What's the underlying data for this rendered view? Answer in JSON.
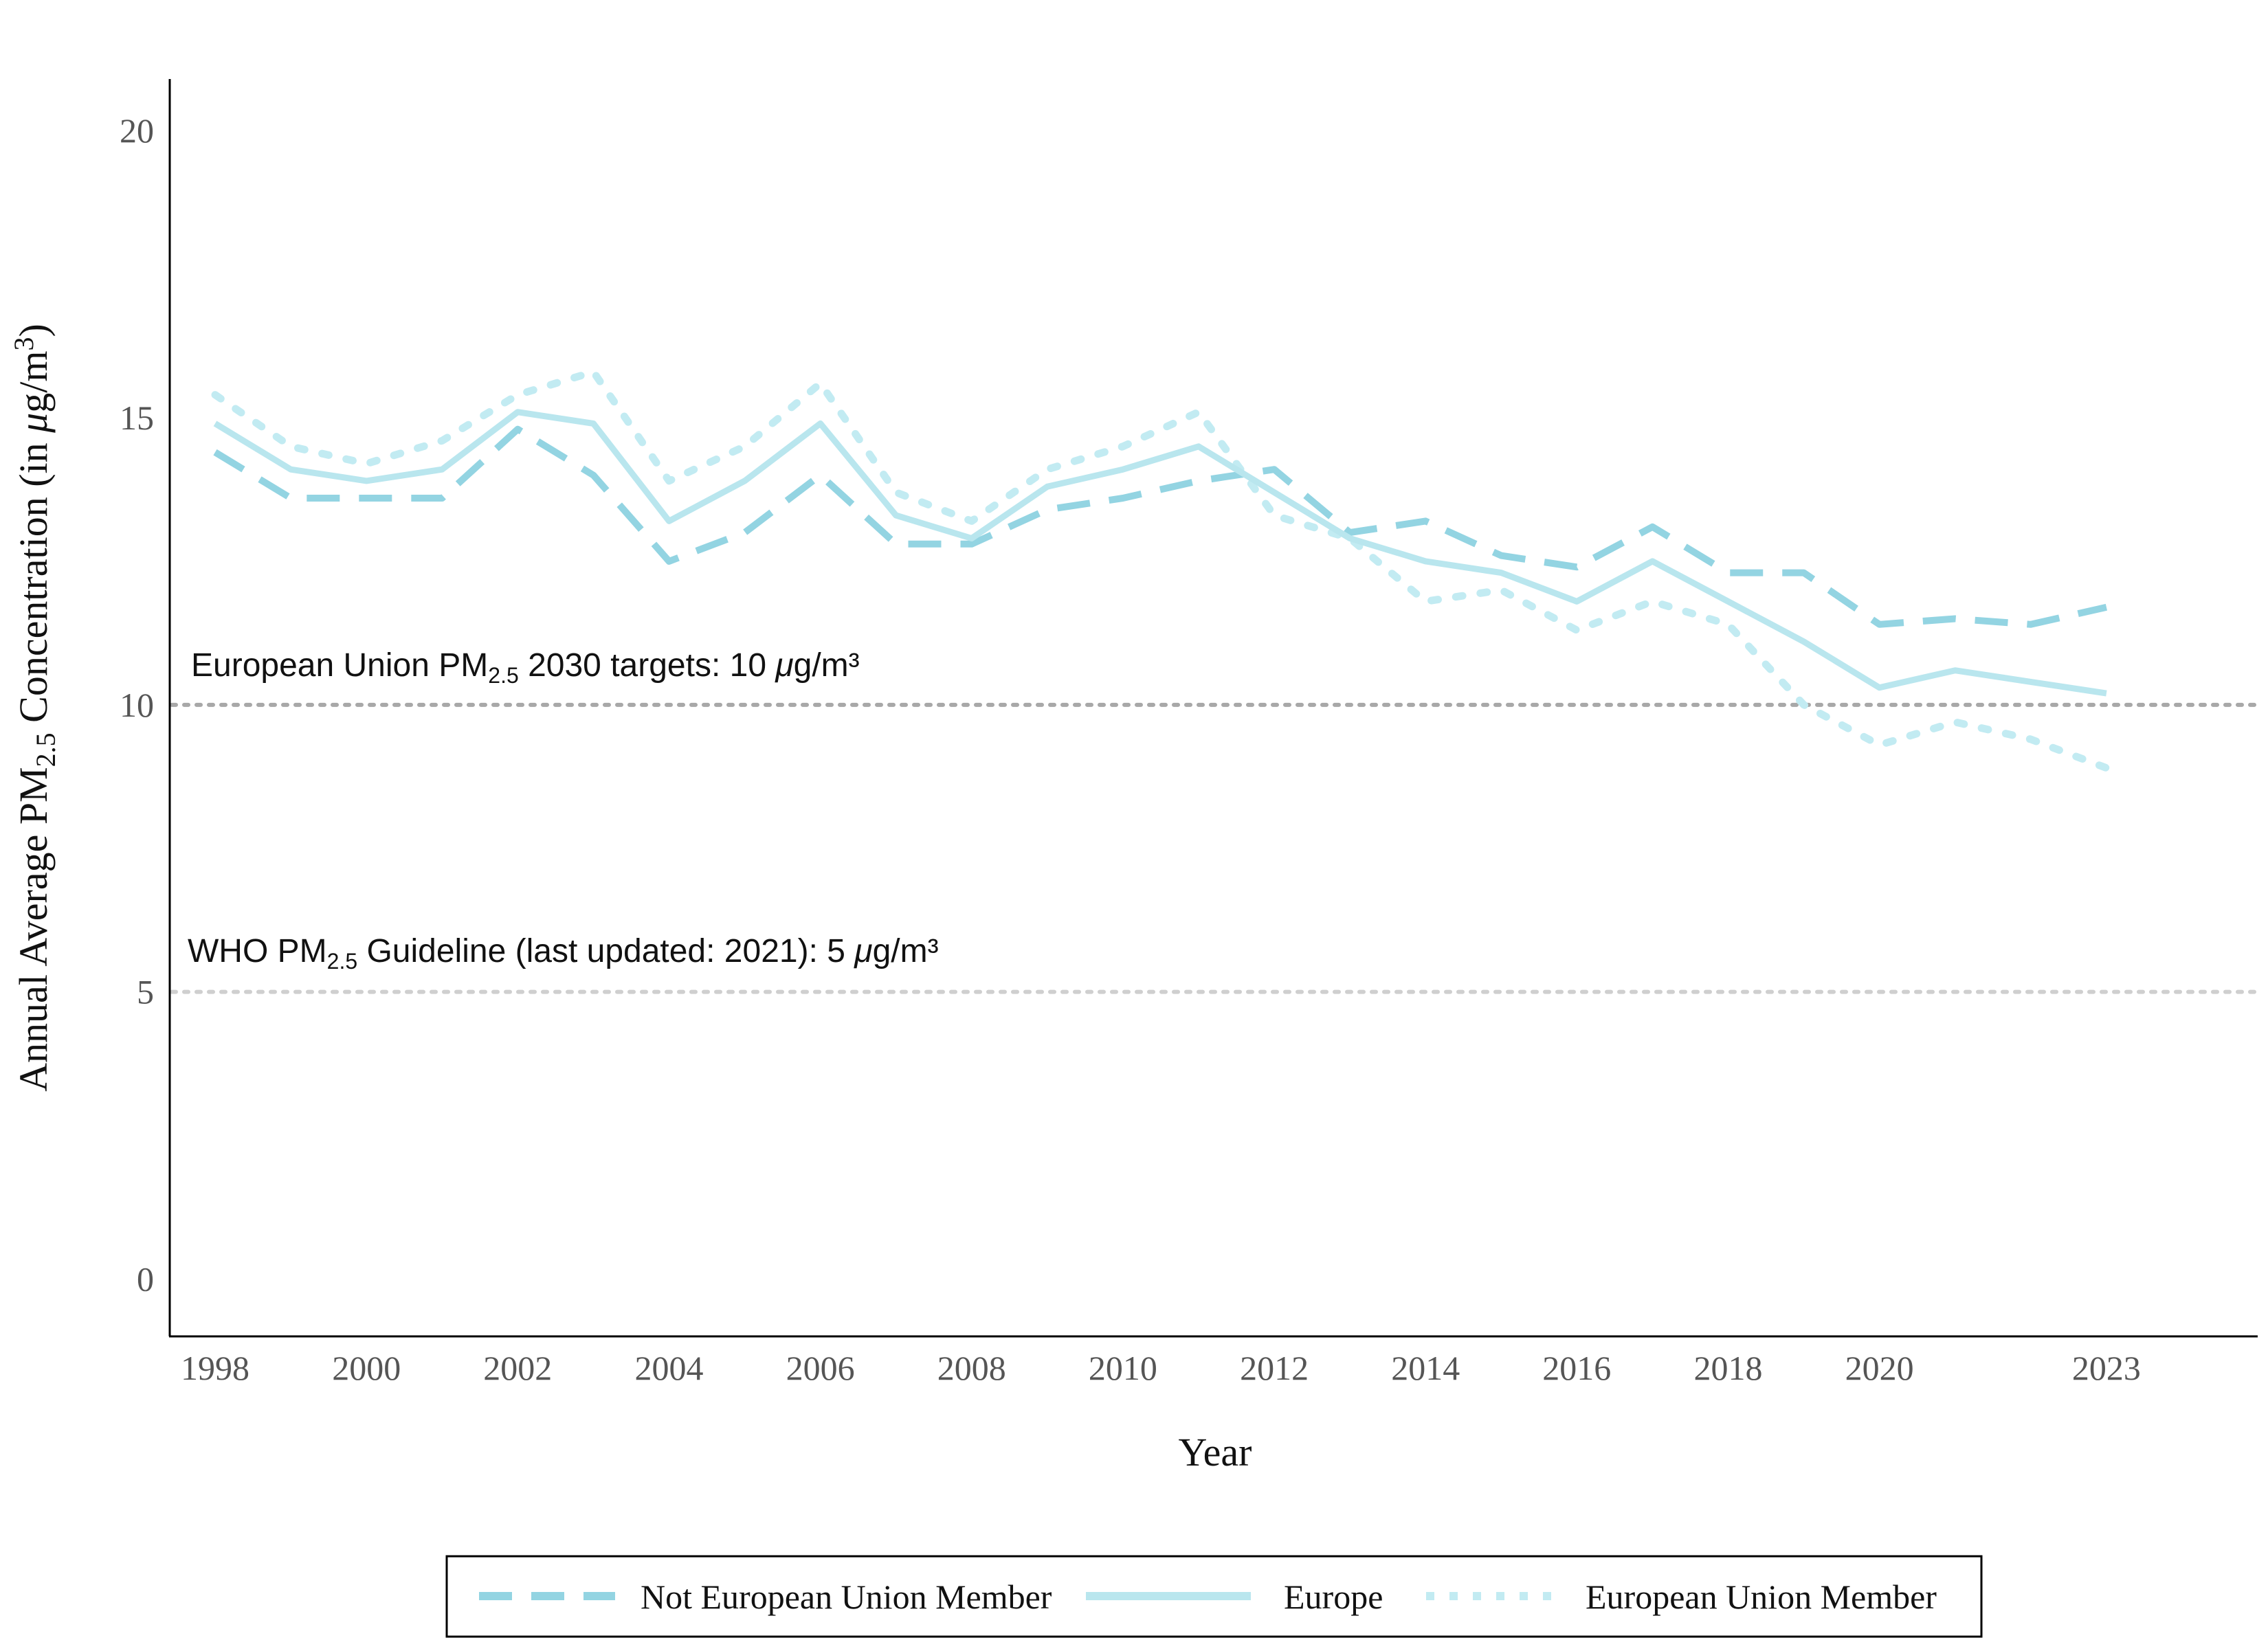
{
  "chart_data": {
    "type": "line",
    "xlabel": "Year",
    "ylabel": {
      "prefix": "Annual Average ",
      "pm": "PM",
      "pm_sub": "2.5",
      "middle": " Concentration (in ",
      "mu": "μ",
      "unit": "g/m",
      "sup": "3",
      "suffix": ")"
    },
    "xlim": [
      1997.4,
      2025.0
    ],
    "ylim": [
      -1.0,
      20.9
    ],
    "x_ticks": [
      1998,
      2000,
      2002,
      2004,
      2006,
      2008,
      2010,
      2012,
      2014,
      2016,
      2018,
      2020,
      2023
    ],
    "y_ticks": [
      0,
      5,
      10,
      15,
      20
    ],
    "grid": false,
    "x": [
      1998,
      1999,
      2000,
      2001,
      2002,
      2003,
      2004,
      2005,
      2006,
      2007,
      2008,
      2009,
      2010,
      2011,
      2012,
      2013,
      2014,
      2015,
      2016,
      2017,
      2018,
      2019,
      2020,
      2021,
      2022,
      2023
    ],
    "series": [
      {
        "name": "Not European Union Member",
        "style": "dashed",
        "color": "#93d4e2",
        "values": [
          14.4,
          13.6,
          13.6,
          13.6,
          14.8,
          14.0,
          12.5,
          13.0,
          14.0,
          12.8,
          12.8,
          13.4,
          13.6,
          13.9,
          14.1,
          13.0,
          13.2,
          12.6,
          12.4,
          13.1,
          12.3,
          12.3,
          11.4,
          11.5,
          11.4,
          11.7
        ]
      },
      {
        "name": "Europe",
        "style": "solid",
        "color": "#b9e6ee",
        "values": [
          14.9,
          14.1,
          13.9,
          14.1,
          15.1,
          14.9,
          13.2,
          13.9,
          14.9,
          13.3,
          12.9,
          13.8,
          14.1,
          14.5,
          13.7,
          12.9,
          12.5,
          12.3,
          11.8,
          12.5,
          11.8,
          11.1,
          10.3,
          10.6,
          10.4,
          10.2
        ]
      },
      {
        "name": "European Union Member",
        "style": "dotted",
        "color": "#c2ebf2",
        "values": [
          15.4,
          14.5,
          14.2,
          14.6,
          15.4,
          15.8,
          13.9,
          14.5,
          15.6,
          13.7,
          13.2,
          14.1,
          14.5,
          15.1,
          13.3,
          12.9,
          11.8,
          12.0,
          11.3,
          11.8,
          11.4,
          10.0,
          9.3,
          9.7,
          9.4,
          8.9
        ]
      }
    ],
    "reference_lines": [
      {
        "y": 10,
        "color": "#a8a8a8",
        "label": {
          "prefix": "European Union  PM",
          "sub": "2.5",
          "middle": " 2030 targets: 10 ",
          "mu": "μ",
          "suffix": "g/m³"
        }
      },
      {
        "y": 5,
        "color": "#cfcfcf",
        "label": {
          "prefix": "WHO PM",
          "sub": "2.5",
          "middle": " Guideline (last updated: 2021): 5 ",
          "mu": "μ",
          "suffix": "g/m³"
        }
      }
    ],
    "legend": {
      "position": "bottom",
      "order": [
        "Not European Union Member",
        "Europe",
        "European Union Member"
      ]
    }
  }
}
